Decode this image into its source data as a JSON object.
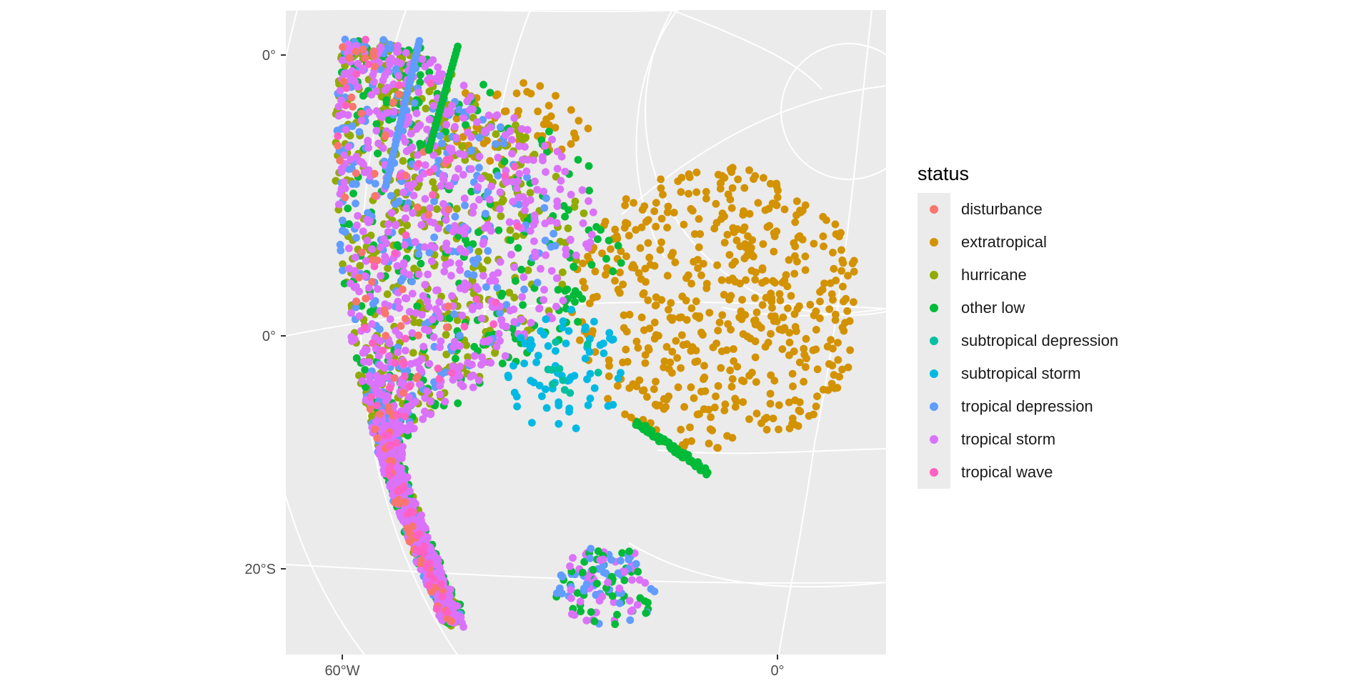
{
  "chart_data": {
    "type": "scatter",
    "projection": "orthographic (storm tracks, Atlantic basin)",
    "panel_background": "#ebebeb",
    "gridline_color": "#ffffff",
    "y_tick_labels": [
      "0°",
      "0°",
      "20°S"
    ],
    "x_tick_labels": [
      "60°W",
      "0°"
    ],
    "legend": {
      "title": "status",
      "position": "right",
      "entries": [
        {
          "label": "disturbance",
          "color": "#F8766D"
        },
        {
          "label": "extratropical",
          "color": "#D39200"
        },
        {
          "label": "hurricane",
          "color": "#93AA00"
        },
        {
          "label": "other low",
          "color": "#00BA38"
        },
        {
          "label": "subtropical depression",
          "color": "#00C19F"
        },
        {
          "label": "subtropical storm",
          "color": "#00B9E3"
        },
        {
          "label": "tropical depression",
          "color": "#619CFF"
        },
        {
          "label": "tropical storm",
          "color": "#DB72FB"
        },
        {
          "label": "tropical wave",
          "color": "#FF61C3"
        }
      ]
    },
    "series_extent": [
      {
        "name": "disturbance",
        "note": "scattered along western and southern edge"
      },
      {
        "name": "extratropical",
        "note": "dense cluster to the east, toward 0°"
      },
      {
        "name": "hurricane",
        "note": "central band"
      },
      {
        "name": "other low",
        "note": "spread throughout, including northern tip"
      },
      {
        "name": "subtropical depression",
        "note": "few points in center"
      },
      {
        "name": "subtropical storm",
        "note": "central-east cluster"
      },
      {
        "name": "tropical depression",
        "note": "western and northern edges"
      },
      {
        "name": "tropical storm",
        "note": "most widespread, central mass"
      },
      {
        "name": "tropical wave",
        "note": "scattered in central mass"
      }
    ]
  }
}
